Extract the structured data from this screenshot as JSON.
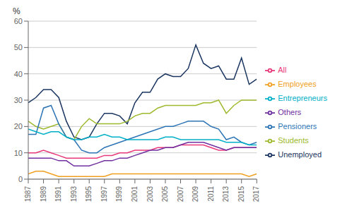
{
  "chart_data": {
    "type": "line",
    "ylabel": "%",
    "x": [
      1987,
      1988,
      1989,
      1990,
      1991,
      1992,
      1993,
      1994,
      1995,
      1996,
      1997,
      1998,
      1999,
      2000,
      2001,
      2002,
      2003,
      2004,
      2005,
      2006,
      2007,
      2008,
      2009,
      2010,
      2011,
      2012,
      2013,
      2014,
      2015,
      2016,
      2017
    ],
    "series": [
      {
        "name": "Unemployed",
        "color": "#1a3560",
        "values": [
          29,
          31,
          34,
          34,
          31,
          22,
          16,
          15,
          16,
          21,
          25,
          25,
          24,
          21,
          29,
          33,
          33,
          38,
          40,
          39,
          39,
          42,
          51,
          44,
          42,
          43,
          38,
          38,
          46,
          36,
          38
        ]
      },
      {
        "name": "Students",
        "color": "#9db92c",
        "values": [
          22,
          20,
          19,
          20,
          21,
          16,
          15,
          20,
          23,
          21,
          21,
          21,
          21,
          22,
          24,
          25,
          25,
          27,
          28,
          28,
          28,
          28,
          28,
          29,
          29,
          30,
          25,
          28,
          30,
          30,
          30
        ]
      },
      {
        "name": "Pensioners",
        "color": "#2e75b6",
        "values": [
          17,
          17,
          27,
          28,
          21,
          16,
          15,
          11,
          10,
          10,
          12,
          13,
          14,
          15,
          16,
          17,
          18,
          19,
          20,
          20,
          21,
          22,
          22,
          22,
          20,
          19,
          15,
          16,
          14,
          13,
          14
        ]
      },
      {
        "name": "Entrepreneurs",
        "color": "#00b0c8",
        "values": [
          19,
          18,
          17,
          18,
          18,
          16,
          15,
          15,
          16,
          16,
          17,
          16,
          16,
          15,
          15,
          15,
          15,
          15,
          16,
          16,
          15,
          15,
          15,
          15,
          15,
          15,
          14,
          14,
          14,
          13,
          13
        ]
      },
      {
        "name": "All",
        "color": "#e8387a",
        "values": [
          10,
          10,
          11,
          10,
          9,
          8,
          8,
          8,
          8,
          8,
          9,
          9,
          10,
          10,
          11,
          11,
          11,
          12,
          12,
          12,
          13,
          13,
          13,
          13,
          12,
          11,
          11,
          12,
          12,
          12,
          12
        ]
      },
      {
        "name": "Others",
        "color": "#7030a0",
        "values": [
          8,
          8,
          8,
          8,
          7,
          7,
          5,
          5,
          5,
          6,
          7,
          7,
          8,
          8,
          9,
          10,
          11,
          11,
          12,
          12,
          13,
          14,
          14,
          14,
          13,
          12,
          11,
          12,
          12,
          12,
          12
        ]
      },
      {
        "name": "Employees",
        "color": "#f0a020",
        "values": [
          2,
          3,
          3,
          2,
          1,
          1,
          1,
          1,
          1,
          1,
          1,
          2,
          2,
          2,
          2,
          2,
          2,
          2,
          2,
          2,
          2,
          2,
          2,
          2,
          2,
          2,
          2,
          2,
          2,
          1,
          2
        ]
      }
    ],
    "xlim": [
      1987,
      2017
    ],
    "xticks": [
      1987,
      1989,
      1991,
      1993,
      1995,
      1997,
      1999,
      2001,
      2003,
      2005,
      2007,
      2009,
      2011,
      2013,
      2015,
      2017
    ],
    "ylim": [
      0,
      60
    ],
    "yticks": [
      0,
      10,
      20,
      30,
      40,
      50,
      60
    ],
    "grid": true,
    "legend": "right"
  }
}
